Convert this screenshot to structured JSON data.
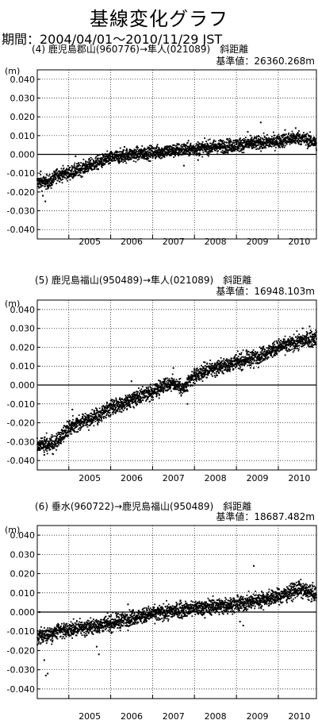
{
  "title": "基線変化グラフ",
  "period_label": "期間：2004/04/01～2010/11/29 JST",
  "series_color": "#000000",
  "chart_data": [
    {
      "type": "scatter",
      "title": "(4) 鹿児島郡山(960776)→隼人(021089)　斜距離",
      "subtitle": "基準値：26360.268m",
      "ylabel": "(m)",
      "ylim": [
        -0.045,
        0.045
      ],
      "y_ticks": [
        "0.040",
        "0.030",
        "0.020",
        "0.010",
        "0.000",
        "-0.010",
        "-0.020",
        "-0.030",
        "-0.040"
      ],
      "y_tick_values": [
        0.04,
        0.03,
        0.02,
        0.01,
        0.0,
        -0.01,
        -0.02,
        -0.03,
        -0.04
      ],
      "xlim": [
        "2004-04-01",
        "2010-11-29"
      ],
      "x_ticks": [
        "2005",
        "2006",
        "2007",
        "2008",
        "2009",
        "2010"
      ],
      "x_tick_dates": [
        "2005-01-01",
        "2006-01-01",
        "2007-01-01",
        "2008-01-01",
        "2009-01-01",
        "2010-01-01"
      ],
      "grid": true,
      "trend": [
        [
          "2004-04-01",
          -0.015
        ],
        [
          "2004-08-01",
          -0.0145
        ],
        [
          "2004-09-15",
          -0.011
        ],
        [
          "2005-02-01",
          -0.0095
        ],
        [
          "2005-07-01",
          -0.006
        ],
        [
          "2006-01-01",
          -0.002
        ],
        [
          "2006-07-01",
          0.0
        ],
        [
          "2007-01-01",
          0.001
        ],
        [
          "2007-07-01",
          0.002
        ],
        [
          "2008-01-01",
          0.003
        ],
        [
          "2008-07-01",
          0.004
        ],
        [
          "2009-01-01",
          0.005
        ],
        [
          "2009-07-01",
          0.006
        ],
        [
          "2010-01-01",
          0.007
        ],
        [
          "2010-07-01",
          0.009
        ],
        [
          "2010-11-29",
          0.006
        ]
      ],
      "noise": 0.0018,
      "outliers": [
        [
          "2004-05-20",
          -0.022
        ],
        [
          "2004-06-10",
          -0.025
        ],
        [
          "2004-05-01",
          -0.009
        ],
        [
          "2005-03-01",
          -0.001
        ],
        [
          "2006-05-01",
          0.004
        ],
        [
          "2007-10-01",
          -0.006
        ],
        [
          "2008-02-01",
          -0.003
        ],
        [
          "2009-04-10",
          0.012
        ],
        [
          "2009-08-01",
          0.017
        ],
        [
          "2010-03-01",
          0.013
        ],
        [
          "2010-06-01",
          0.014
        ]
      ]
    },
    {
      "type": "scatter",
      "title": "(5) 鹿児島福山(950489)→隼人(021089)　斜距離",
      "subtitle": "基準値：16948.103m",
      "ylabel": "(m)",
      "ylim": [
        -0.045,
        0.045
      ],
      "y_ticks": [
        "0.040",
        "0.030",
        "0.020",
        "0.010",
        "0.000",
        "-0.010",
        "-0.020",
        "-0.030",
        "-0.040"
      ],
      "y_tick_values": [
        0.04,
        0.03,
        0.02,
        0.01,
        0.0,
        -0.01,
        -0.02,
        -0.03,
        -0.04
      ],
      "xlim": [
        "2004-04-01",
        "2010-11-29"
      ],
      "x_ticks": [
        "2005",
        "2006",
        "2007",
        "2008",
        "2009",
        "2010"
      ],
      "x_tick_dates": [
        "2005-01-01",
        "2006-01-01",
        "2007-01-01",
        "2008-01-01",
        "2009-01-01",
        "2010-01-01"
      ],
      "grid": true,
      "trend": [
        [
          "2004-04-01",
          -0.032
        ],
        [
          "2004-09-01",
          -0.031
        ],
        [
          "2004-12-01",
          -0.025
        ],
        [
          "2005-03-01",
          -0.02
        ],
        [
          "2005-09-01",
          -0.017
        ],
        [
          "2006-01-01",
          -0.012
        ],
        [
          "2006-07-01",
          -0.008
        ],
        [
          "2007-01-01",
          -0.004
        ],
        [
          "2007-04-01",
          0.0
        ],
        [
          "2007-07-01",
          0.001
        ],
        [
          "2007-10-01",
          -0.002
        ],
        [
          "2008-01-01",
          0.005
        ],
        [
          "2008-07-01",
          0.009
        ],
        [
          "2009-01-01",
          0.012
        ],
        [
          "2009-07-01",
          0.015
        ],
        [
          "2010-01-01",
          0.02
        ],
        [
          "2010-07-01",
          0.023
        ],
        [
          "2010-11-29",
          0.025
        ]
      ],
      "noise": 0.002,
      "outliers": [
        [
          "2004-06-01",
          -0.037
        ],
        [
          "2005-02-01",
          -0.013
        ],
        [
          "2006-07-01",
          0.002
        ],
        [
          "2007-07-01",
          0.009
        ],
        [
          "2007-11-01",
          -0.01
        ],
        [
          "2008-04-01",
          0.012
        ],
        [
          "2009-06-01",
          0.009
        ],
        [
          "2010-08-01",
          0.03
        ],
        [
          "2010-10-01",
          0.031
        ]
      ]
    },
    {
      "type": "scatter",
      "title": "(6) 垂水(960722)→鹿児島福山(950489)　斜距離",
      "subtitle": "基準値：18687.482m",
      "ylabel": "(m)",
      "ylim": [
        -0.045,
        0.045
      ],
      "y_ticks": [
        "0.040",
        "0.030",
        "0.020",
        "0.010",
        "0.000",
        "-0.010",
        "-0.020",
        "-0.030",
        "-0.040"
      ],
      "y_tick_values": [
        0.04,
        0.03,
        0.02,
        0.01,
        0.0,
        -0.01,
        -0.02,
        -0.03,
        -0.04
      ],
      "xlim": [
        "2004-04-01",
        "2010-11-29"
      ],
      "x_ticks": [
        "2005",
        "2006",
        "2007",
        "2008",
        "2009",
        "2010"
      ],
      "x_tick_dates": [
        "2005-01-01",
        "2006-01-01",
        "2007-01-01",
        "2008-01-01",
        "2009-01-01",
        "2010-01-01"
      ],
      "grid": true,
      "trend": [
        [
          "2004-04-01",
          -0.013
        ],
        [
          "2004-10-01",
          -0.01
        ],
        [
          "2005-06-01",
          -0.008
        ],
        [
          "2006-01-01",
          -0.006
        ],
        [
          "2006-07-01",
          -0.003
        ],
        [
          "2007-01-01",
          -0.001
        ],
        [
          "2008-01-01",
          0.002
        ],
        [
          "2009-01-01",
          0.004
        ],
        [
          "2009-07-01",
          0.006
        ],
        [
          "2010-01-01",
          0.008
        ],
        [
          "2010-07-01",
          0.012
        ],
        [
          "2010-11-29",
          0.009
        ]
      ],
      "noise": 0.002,
      "outliers": [
        [
          "2004-04-20",
          0.0
        ],
        [
          "2004-06-01",
          -0.025
        ],
        [
          "2004-06-15",
          -0.033
        ],
        [
          "2004-07-01",
          -0.032
        ],
        [
          "2005-09-01",
          -0.018
        ],
        [
          "2005-09-20",
          -0.022
        ],
        [
          "2006-06-01",
          0.004
        ],
        [
          "2007-09-01",
          0.006
        ],
        [
          "2008-04-01",
          -0.003
        ],
        [
          "2009-02-01",
          -0.005
        ],
        [
          "2009-03-01",
          -0.007
        ],
        [
          "2009-06-01",
          0.024
        ],
        [
          "2010-07-01",
          0.016
        ]
      ]
    }
  ]
}
